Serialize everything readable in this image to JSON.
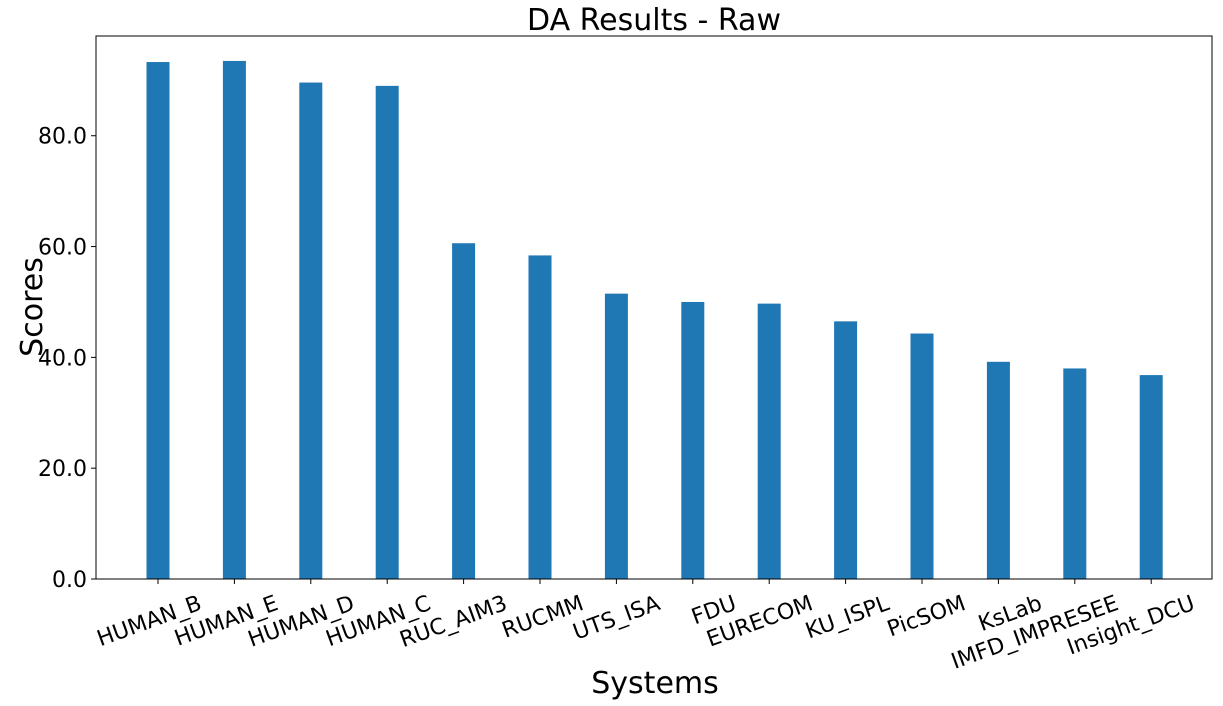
{
  "chart_data": {
    "type": "bar",
    "title": "DA Results - Raw",
    "xlabel": "Systems",
    "ylabel": "Scores",
    "categories": [
      "HUMAN_B",
      "HUMAN_E",
      "HUMAN_D",
      "HUMAN_C",
      "RUC_AIM3",
      "RUCMM",
      "UTS_ISA",
      "FDU",
      "EURECOM",
      "KU_ISPL",
      "PicSOM",
      "KsLab",
      "IMFD_IMPRESEE",
      "Insight_DCU"
    ],
    "values": [
      93.3,
      93.5,
      89.6,
      89.0,
      60.6,
      58.4,
      51.5,
      50.0,
      49.7,
      46.5,
      44.3,
      39.2,
      38.0,
      36.8
    ],
    "ylim": [
      0,
      98
    ],
    "yticks": [
      0,
      20,
      40,
      60,
      80
    ],
    "ytick_labels": [
      "0.0",
      "20.0",
      "40.0",
      "60.0",
      "80.0"
    ],
    "bar_color": "#1f77b4",
    "grid": false,
    "legend": "none"
  }
}
